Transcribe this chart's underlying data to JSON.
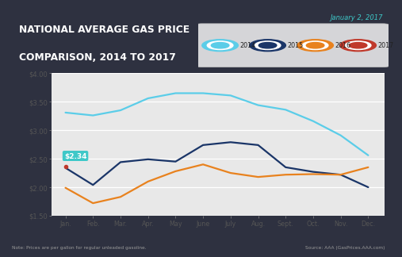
{
  "title_line1": "NATIONAL AVERAGE GAS PRICE",
  "title_line2": "COMPARISON, 2014 TO 2017",
  "date_label": "January 2, 2017",
  "note": "Note: Prices are per gallon for regular unleaded gasoline.",
  "source": "Source: AAA (GasPrices.AAA.com)",
  "bg_dark": "#2e3140",
  "title_bg": "#c0392b",
  "chart_bg": "#e8e8e8",
  "ylim": [
    1.5,
    4.0
  ],
  "yticks": [
    1.5,
    2.0,
    2.5,
    3.0,
    3.5,
    4.0
  ],
  "ytick_labels": [
    "$1.50",
    "$2.00",
    "$2.50",
    "$3.00",
    "$3.50",
    "$4.00"
  ],
  "months": [
    "Jan.",
    "Feb.",
    "Mar.",
    "Apr.",
    "May",
    "June",
    "July",
    "Aug.",
    "Sept.",
    "Oct.",
    "Nov.",
    "Dec."
  ],
  "annotation_value": "$2.34",
  "annotation_color": "#3ec8c8",
  "c2014": "#5bcde8",
  "c2015": "#1a3568",
  "c2016": "#e8821e",
  "c2017": "#c0392b",
  "d2014": [
    3.31,
    3.26,
    3.35,
    3.56,
    3.65,
    3.65,
    3.61,
    3.44,
    3.36,
    3.16,
    2.91,
    2.56
  ],
  "d2015": [
    2.34,
    2.04,
    2.44,
    2.49,
    2.45,
    2.74,
    2.79,
    2.74,
    2.35,
    2.27,
    2.22,
    2.0
  ],
  "d2016": [
    1.99,
    1.72,
    1.83,
    2.1,
    2.28,
    2.4,
    2.25,
    2.18,
    2.22,
    2.23,
    2.22,
    2.35
  ],
  "d2017": [
    2.36
  ],
  "legend_years": [
    "2014",
    "2015",
    "2016",
    "2017"
  ],
  "legend_colors": [
    "#5bcde8",
    "#1a3568",
    "#e8821e",
    "#c0392b"
  ]
}
